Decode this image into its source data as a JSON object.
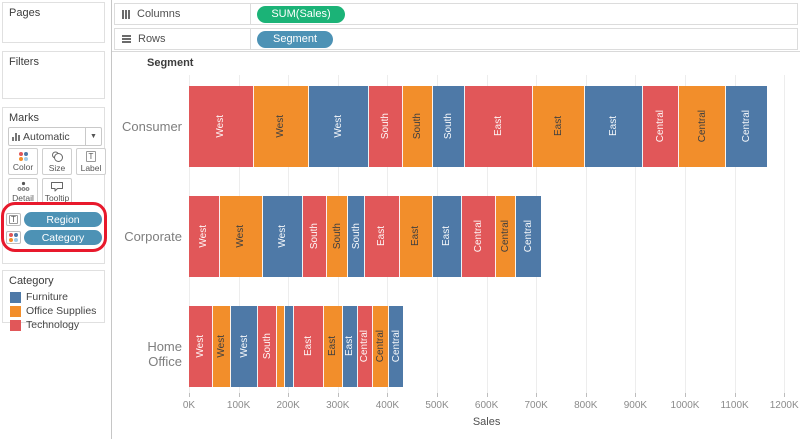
{
  "ui": {
    "annotation_color": "#e8192c",
    "columns_pill_color": "#1bb377",
    "rows_pill_color": "#4d92b5",
    "marks_pill_color": "#4d92b5"
  },
  "shelves": {
    "columns": {
      "label": "Columns",
      "pill": "SUM(Sales)"
    },
    "rows": {
      "label": "Rows",
      "pill": "Segment"
    }
  },
  "sidebar": {
    "pages": {
      "title": "Pages"
    },
    "filters": {
      "title": "Filters"
    },
    "marks": {
      "title": "Marks",
      "mark_type": "Automatic",
      "buttons": {
        "color": "Color",
        "size": "Size",
        "label": "Label",
        "detail": "Detail",
        "tooltip": "Tooltip"
      },
      "pills": [
        {
          "label": "Region",
          "encoding": "label"
        },
        {
          "label": "Category",
          "encoding": "color"
        }
      ]
    },
    "legend": {
      "title": "Category",
      "items": [
        {
          "label": "Furniture",
          "color": "#4e79a7"
        },
        {
          "label": "Office Supplies",
          "color": "#f28e2b"
        },
        {
          "label": "Technology",
          "color": "#e15759"
        }
      ]
    }
  },
  "chart_data": {
    "type": "bar",
    "subtype": "stacked-horizontal",
    "row_header": "Segment",
    "xlabel": "Sales",
    "x_ticks": [
      "0K",
      "100K",
      "200K",
      "300K",
      "400K",
      "500K",
      "600K",
      "700K",
      "800K",
      "900K",
      "1000K",
      "1100K",
      "1200K"
    ],
    "x_max_k": 1200,
    "grid": true,
    "colors": {
      "Furniture": "#4e79a7",
      "Office Supplies": "#f28e2b",
      "Technology": "#e15759"
    },
    "region_order": [
      "West",
      "South",
      "East",
      "Central"
    ],
    "rows": [
      {
        "segment": "Consumer",
        "bars": [
          {
            "region": "West",
            "category": "Technology",
            "value_k": 131
          },
          {
            "region": "West",
            "category": "Office Supplies",
            "value_k": 111
          },
          {
            "region": "West",
            "category": "Furniture",
            "value_k": 121
          },
          {
            "region": "South",
            "category": "Technology",
            "value_k": 68
          },
          {
            "region": "South",
            "category": "Office Supplies",
            "value_k": 60
          },
          {
            "region": "South",
            "category": "Furniture",
            "value_k": 66
          },
          {
            "region": "East",
            "category": "Technology",
            "value_k": 137
          },
          {
            "region": "East",
            "category": "Office Supplies",
            "value_k": 105
          },
          {
            "region": "East",
            "category": "Furniture",
            "value_k": 117
          },
          {
            "region": "Central",
            "category": "Technology",
            "value_k": 72
          },
          {
            "region": "Central",
            "category": "Office Supplies",
            "value_k": 95
          },
          {
            "region": "Central",
            "category": "Furniture",
            "value_k": 82
          }
        ]
      },
      {
        "segment": "Corporate",
        "bars": [
          {
            "region": "West",
            "category": "Technology",
            "value_k": 62
          },
          {
            "region": "West",
            "category": "Office Supplies",
            "value_k": 87
          },
          {
            "region": "West",
            "category": "Furniture",
            "value_k": 80
          },
          {
            "region": "South",
            "category": "Technology",
            "value_k": 50
          },
          {
            "region": "South",
            "category": "Office Supplies",
            "value_k": 42
          },
          {
            "region": "South",
            "category": "Furniture",
            "value_k": 34
          },
          {
            "region": "East",
            "category": "Technology",
            "value_k": 70
          },
          {
            "region": "East",
            "category": "Office Supplies",
            "value_k": 66
          },
          {
            "region": "East",
            "category": "Furniture",
            "value_k": 60
          },
          {
            "region": "Central",
            "category": "Technology",
            "value_k": 68
          },
          {
            "region": "Central",
            "category": "Office Supplies",
            "value_k": 40
          },
          {
            "region": "Central",
            "category": "Furniture",
            "value_k": 50
          }
        ]
      },
      {
        "segment": "Home Office",
        "bars": [
          {
            "region": "West",
            "category": "Technology",
            "value_k": 48
          },
          {
            "region": "West",
            "category": "Office Supplies",
            "value_k": 36
          },
          {
            "region": "West",
            "category": "Furniture",
            "value_k": 56
          },
          {
            "region": "South",
            "category": "Technology",
            "value_k": 38
          },
          {
            "region": "South",
            "category": "Office Supplies",
            "value_k": 16
          },
          {
            "region": "South",
            "category": "Furniture",
            "value_k": 18
          },
          {
            "region": "East",
            "category": "Technology",
            "value_k": 60
          },
          {
            "region": "East",
            "category": "Office Supplies",
            "value_k": 38
          },
          {
            "region": "East",
            "category": "Furniture",
            "value_k": 30
          },
          {
            "region": "Central",
            "category": "Technology",
            "value_k": 32
          },
          {
            "region": "Central",
            "category": "Office Supplies",
            "value_k": 32
          },
          {
            "region": "Central",
            "category": "Furniture",
            "value_k": 28
          }
        ]
      }
    ]
  }
}
